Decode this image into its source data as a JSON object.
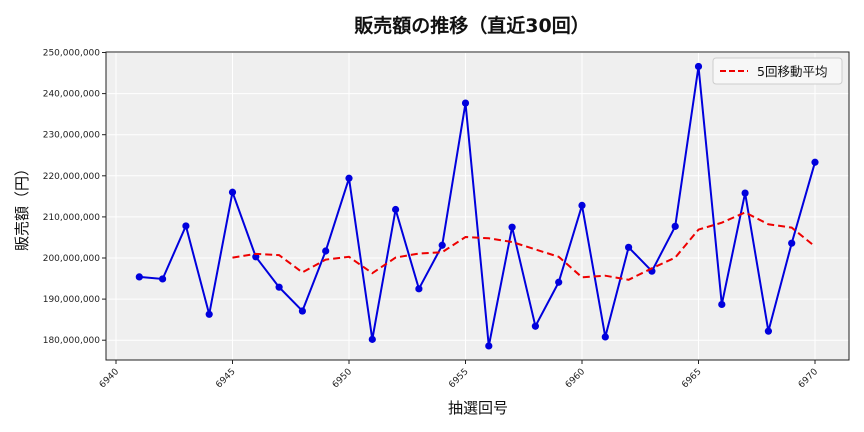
{
  "chart_data": {
    "type": "line",
    "title": "販売額の推移（直近30回）",
    "xlabel": "抽選回号",
    "ylabel": "販売額（円）",
    "x": [
      6941,
      6942,
      6943,
      6944,
      6945,
      6946,
      6947,
      6948,
      6949,
      6950,
      6951,
      6952,
      6953,
      6954,
      6955,
      6956,
      6957,
      6958,
      6959,
      6960,
      6961,
      6962,
      6963,
      6964,
      6965,
      6966,
      6967,
      6968,
      6969,
      6970
    ],
    "series": [
      {
        "name": "販売額",
        "color": "#0000dd",
        "style": "solid-markers",
        "values": [
          195400000,
          194900000,
          207800000,
          186300000,
          216000000,
          200300000,
          192900000,
          187100000,
          201700000,
          219400000,
          180200000,
          211800000,
          192500000,
          203100000,
          237700000,
          178600000,
          207500000,
          183400000,
          194100000,
          212800000,
          180800000,
          202600000,
          196800000,
          207700000,
          246600000,
          188700000,
          215800000,
          182200000,
          203600000,
          223300000
        ]
      },
      {
        "name": "5回移動平均",
        "color": "#ee0000",
        "style": "dashed",
        "values": [
          null,
          null,
          null,
          null,
          200100000,
          201000000,
          200700000,
          196500000,
          199600000,
          200300000,
          196300000,
          200100000,
          201100000,
          201400000,
          205100000,
          204800000,
          203900000,
          202100000,
          200300000,
          195300000,
          195700000,
          194700000,
          197500000,
          200100000,
          206900000,
          208600000,
          211100000,
          208200000,
          207400000,
          202800000
        ]
      }
    ],
    "xticks": [
      6940,
      6945,
      6950,
      6955,
      6960,
      6965,
      6970
    ],
    "yticks": [
      180000000,
      190000000,
      200000000,
      210000000,
      220000000,
      230000000,
      240000000,
      250000000
    ],
    "ytick_labels": [
      "180,000,000",
      "190,000,000",
      "200,000,000",
      "210,000,000",
      "220,000,000",
      "230,000,000",
      "240,000,000",
      "250,000,000"
    ],
    "xlim": [
      6939.6,
      6971.5
    ],
    "ylim": [
      175200000,
      250000000
    ],
    "grid": true,
    "legend": {
      "position": "upper right",
      "entries": [
        "5回移動平均"
      ]
    }
  }
}
